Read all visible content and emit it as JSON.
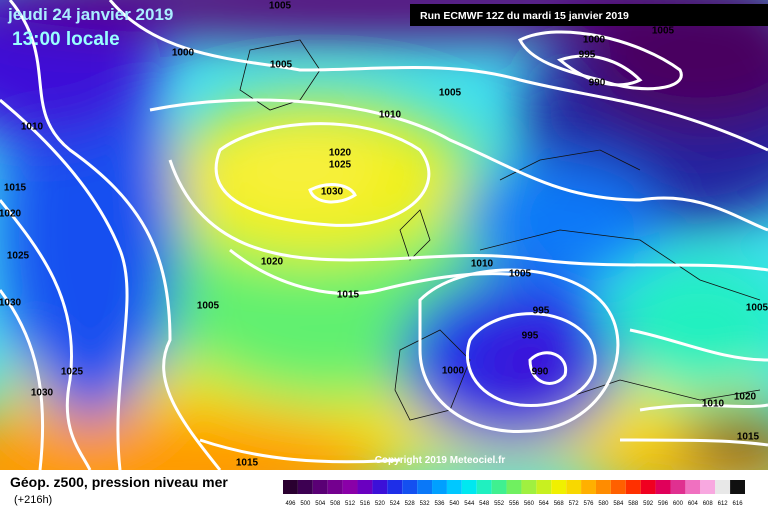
{
  "header": {
    "date": "jeudi 24 janvier 2019",
    "time": "13:00 locale",
    "run": "Run ECMWF 12Z du mardi 15 janvier 2019"
  },
  "copyright": "Copyright 2019 Meteociel.fr",
  "legend": {
    "title": "Géop. z500, pression niveau mer",
    "lead": "(+216h)",
    "labels": [
      496,
      500,
      504,
      508,
      512,
      516,
      520,
      524,
      528,
      532,
      536,
      540,
      544,
      548,
      552,
      556,
      560,
      564,
      568,
      572,
      576,
      580,
      584,
      588,
      592,
      596,
      600,
      604,
      608,
      612,
      616
    ],
    "colors": [
      "#2a0030",
      "#3d0052",
      "#5a0075",
      "#74008f",
      "#8a00a8",
      "#6a00c0",
      "#3c10d8",
      "#1e2ee8",
      "#1450f0",
      "#0a78f8",
      "#00a0ff",
      "#00c8ff",
      "#00e8f0",
      "#20f0c0",
      "#40f090",
      "#70f060",
      "#a0f040",
      "#c8f020",
      "#f0f000",
      "#f8d800",
      "#ffb000",
      "#ff8c00",
      "#ff6000",
      "#ff3000",
      "#f00020",
      "#e0005a",
      "#e03090",
      "#f070c0",
      "#f8a8e0",
      "#e8e8e8",
      "#101010"
    ]
  },
  "isobars": [
    "1005",
    "1000",
    "1005",
    "1010",
    "1005",
    "1010",
    "1020",
    "1025",
    "1030",
    "1015",
    "1020",
    "1025",
    "1020",
    "1030",
    "1015",
    "1010",
    "1005",
    "1005",
    "995",
    "995",
    "1000",
    "990",
    "1025",
    "1030",
    "1000",
    "995",
    "990",
    "1005",
    "1005",
    "1020",
    "1010",
    "1015",
    "1015"
  ]
}
